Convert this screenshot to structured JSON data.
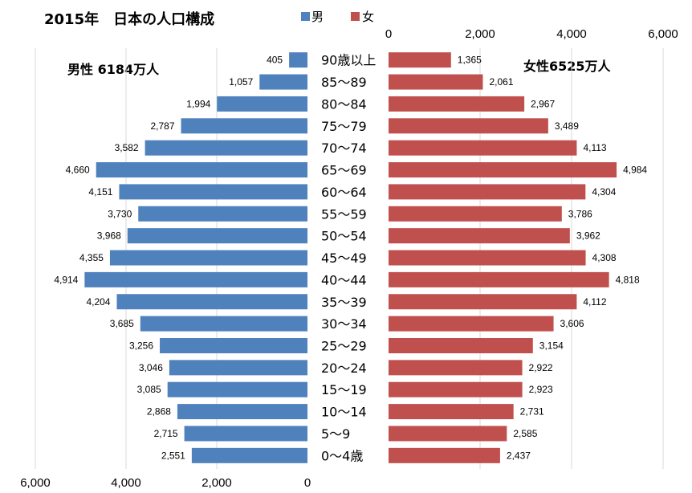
{
  "chart_data": {
    "type": "bar",
    "subtype": "population-pyramid",
    "title": "2015年　日本の人口構成",
    "categories": [
      "90歳以上",
      "85～89",
      "80～84",
      "75～79",
      "70～74",
      "65～69",
      "60～64",
      "55～59",
      "50～54",
      "45～49",
      "40～44",
      "35～39",
      "30～34",
      "25～29",
      "20～24",
      "15～19",
      "10～14",
      "5～9",
      "0～4歳"
    ],
    "series": [
      {
        "name": "男",
        "color": "#4f81bd",
        "values": [
          405,
          1057,
          1994,
          2787,
          3582,
          4660,
          4151,
          3730,
          3968,
          4355,
          4914,
          4204,
          3685,
          3256,
          3046,
          3085,
          2868,
          2715,
          2551
        ],
        "labels": [
          "405",
          "1,057",
          "1,994",
          "2,787",
          "3,582",
          "4,660",
          "4,151",
          "3,730",
          "3,968",
          "4,355",
          "4,914",
          "4,204",
          "3,685",
          "3,256",
          "3,046",
          "3,085",
          "2,868",
          "2,715",
          "2,551"
        ]
      },
      {
        "name": "女",
        "color": "#c0504d",
        "values": [
          1365,
          2061,
          2967,
          3489,
          4113,
          4984,
          4304,
          3786,
          3962,
          4308,
          4818,
          4112,
          3606,
          3154,
          2922,
          2923,
          2731,
          2585,
          2437
        ],
        "labels": [
          "1,365",
          "2,061",
          "2,967",
          "3,489",
          "4,113",
          "4,984",
          "4,304",
          "3,786",
          "3,962",
          "4,308",
          "4,818",
          "4,112",
          "3,606",
          "3,154",
          "2,922",
          "2,923",
          "2,731",
          "2,585",
          "2,437"
        ]
      }
    ],
    "male_total": "男性  6184万人",
    "female_total": "女性6525万人",
    "x_ticks_male": [
      "6,000",
      "4,000",
      "2,000",
      "0"
    ],
    "x_ticks_female": [
      "0",
      "2,000",
      "4,000",
      "6,000"
    ],
    "xlim": [
      0,
      6000
    ],
    "grid": true,
    "legend": "top"
  }
}
